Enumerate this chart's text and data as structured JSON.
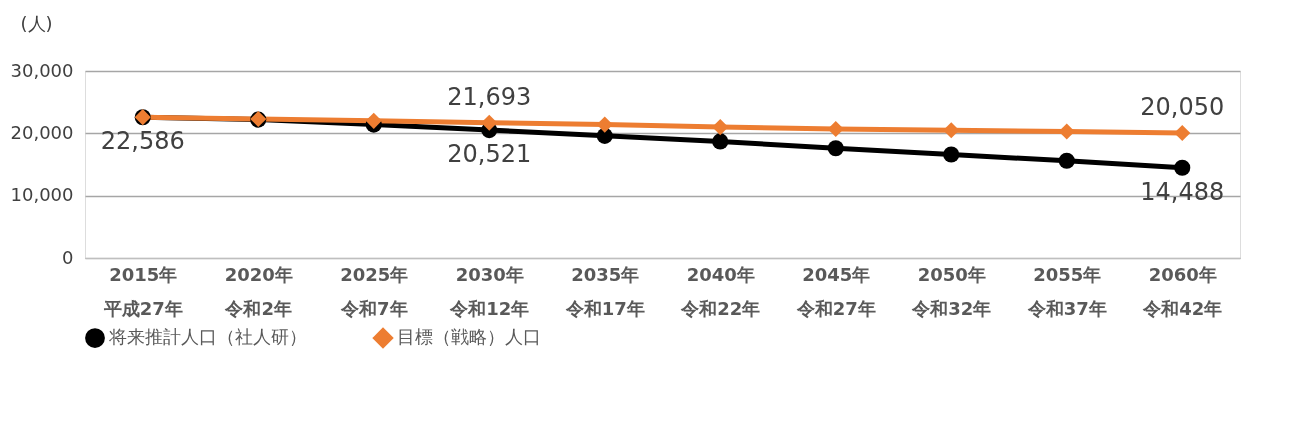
{
  "chart_data": {
    "type": "line",
    "ylabel": "(人)",
    "categories": [
      "2015年平成27年",
      "2020年令和2年",
      "2025年令和7年",
      "2030年令和12年",
      "2035年令和17年",
      "2040年令和22年",
      "2045年令和27年",
      "2050年令和32年",
      "2055年令和37年",
      "2060年令和42年"
    ],
    "series": [
      {
        "name": "将来推計人口（社人研）",
        "color": "#000000",
        "marker": "circle",
        "values": [
          22586,
          22200,
          21400,
          20521,
          19600,
          18700,
          17600,
          16600,
          15600,
          14488
        ],
        "value_labels": [
          "22,586",
          null,
          null,
          "20,521",
          null,
          null,
          null,
          null,
          null,
          "14,488"
        ]
      },
      {
        "name": "目標（戦略）人口",
        "color": "#ed7d31",
        "marker": "diamond",
        "values": [
          22600,
          22300,
          22000,
          21693,
          21400,
          21000,
          20700,
          20500,
          20300,
          20050
        ],
        "value_labels": [
          null,
          null,
          null,
          "21,693",
          null,
          null,
          null,
          null,
          null,
          "20,050"
        ]
      }
    ],
    "ylim": [
      0,
      30000
    ],
    "yticks": [
      0,
      {
        "value": 10000,
        "label": "10,000"
      },
      {
        "value": 20000,
        "label": "20,000"
      },
      {
        "value": 30000,
        "label": "30,000"
      }
    ],
    "grid": "y",
    "legend": "bottom"
  }
}
